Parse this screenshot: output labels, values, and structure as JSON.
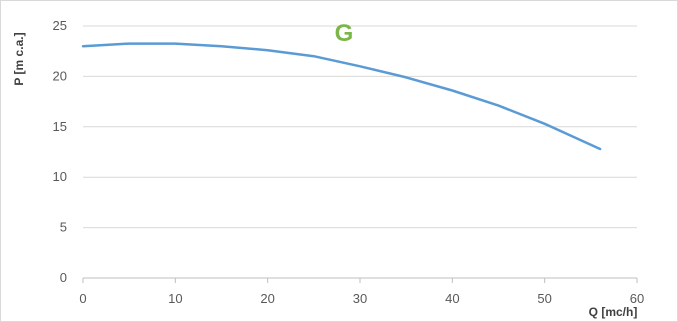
{
  "chart_data": {
    "type": "line",
    "title": "G",
    "xlabel": "Q [mc/h]",
    "ylabel": "P [m c.a.]",
    "xlim": [
      0,
      60
    ],
    "ylim": [
      0,
      25
    ],
    "x_ticks": [
      0,
      10,
      20,
      30,
      40,
      50,
      60
    ],
    "y_ticks": [
      0,
      5,
      10,
      15,
      20,
      25
    ],
    "grid": "horizontal",
    "legend": "none",
    "series": [
      {
        "x": [
          0,
          5,
          10,
          15,
          20,
          25,
          30,
          35,
          40,
          45,
          50,
          56
        ],
        "y": [
          23.0,
          23.25,
          23.25,
          23.0,
          22.6,
          22.0,
          21.0,
          19.9,
          18.6,
          17.1,
          15.3,
          12.8
        ]
      }
    ]
  },
  "colors": {
    "title": "#7ab648",
    "line": "#5b9bd5",
    "grid": "#d9d9d9",
    "axis": "#bfbfbf",
    "tick_text": "#595959"
  }
}
